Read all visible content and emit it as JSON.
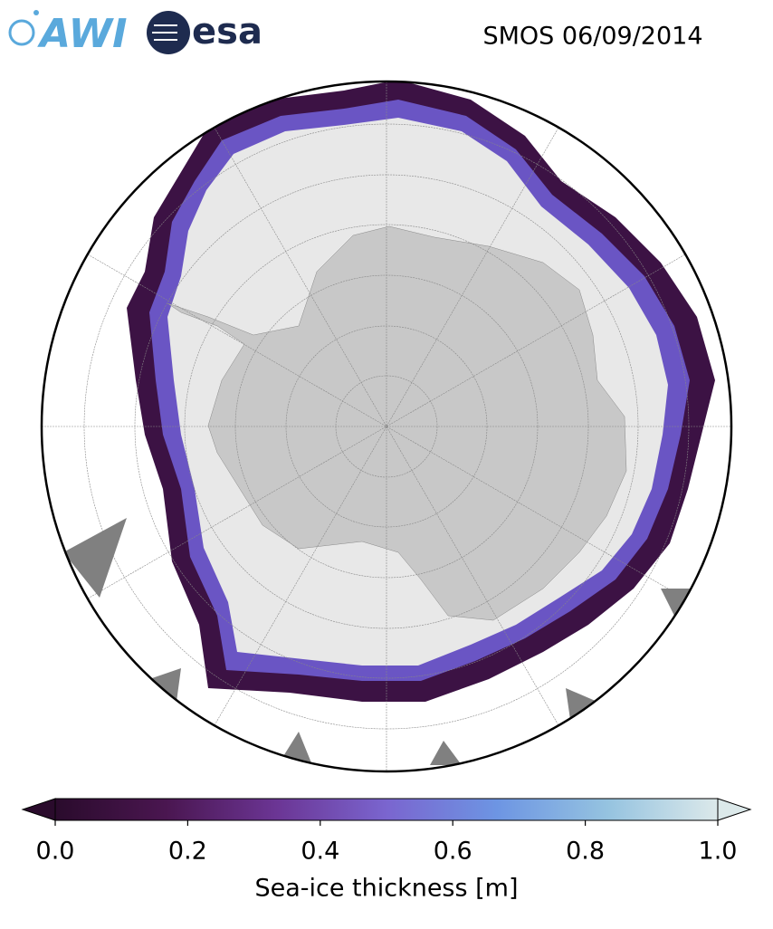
{
  "chart_data": {
    "type": "map",
    "title": "SMOS 06/09/2014",
    "logos": [
      "AWI",
      "esa"
    ],
    "colorbar_label": "Sea-ice thickness [m]",
    "colorbar_lim": [
      0,
      1
    ],
    "colorbar_ticks": [
      {
        "value": 0,
        "label": "0.0"
      },
      0.2,
      0.4,
      0.6,
      0.8,
      {
        "value": 1,
        "label": "1.0"
      }
    ],
    "colormap": [
      "#2a0b2c",
      "#4a1650",
      "#6b3594",
      "#7a65cf",
      "#6d95e3",
      "#95c3e0",
      "#dce9ea"
    ],
    "extend": "both"
  }
}
